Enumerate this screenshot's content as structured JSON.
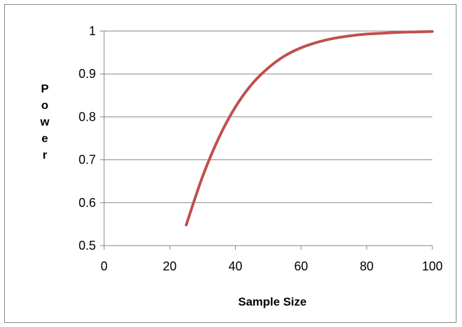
{
  "chart_data": {
    "type": "line",
    "title": "",
    "xlabel": "Sample Size",
    "ylabel": "Power",
    "xlim": [
      0,
      100
    ],
    "ylim": [
      0.5,
      1
    ],
    "x_ticks": [
      "0",
      "20",
      "40",
      "60",
      "80",
      "100"
    ],
    "y_ticks": [
      "0.5",
      "0.6",
      "0.7",
      "0.8",
      "0.9",
      "1"
    ],
    "grid": "horizontal",
    "legend": "none",
    "series": [
      {
        "color": "#C0504D",
        "x": [
          25,
          30,
          35,
          40,
          45,
          50,
          55,
          60,
          65,
          70,
          75,
          80,
          85,
          90,
          95,
          100
        ],
        "y": [
          0.548,
          0.661,
          0.752,
          0.823,
          0.876,
          0.914,
          0.942,
          0.961,
          0.974,
          0.983,
          0.989,
          0.993,
          0.995,
          0.997,
          0.998,
          0.999
        ]
      }
    ]
  }
}
